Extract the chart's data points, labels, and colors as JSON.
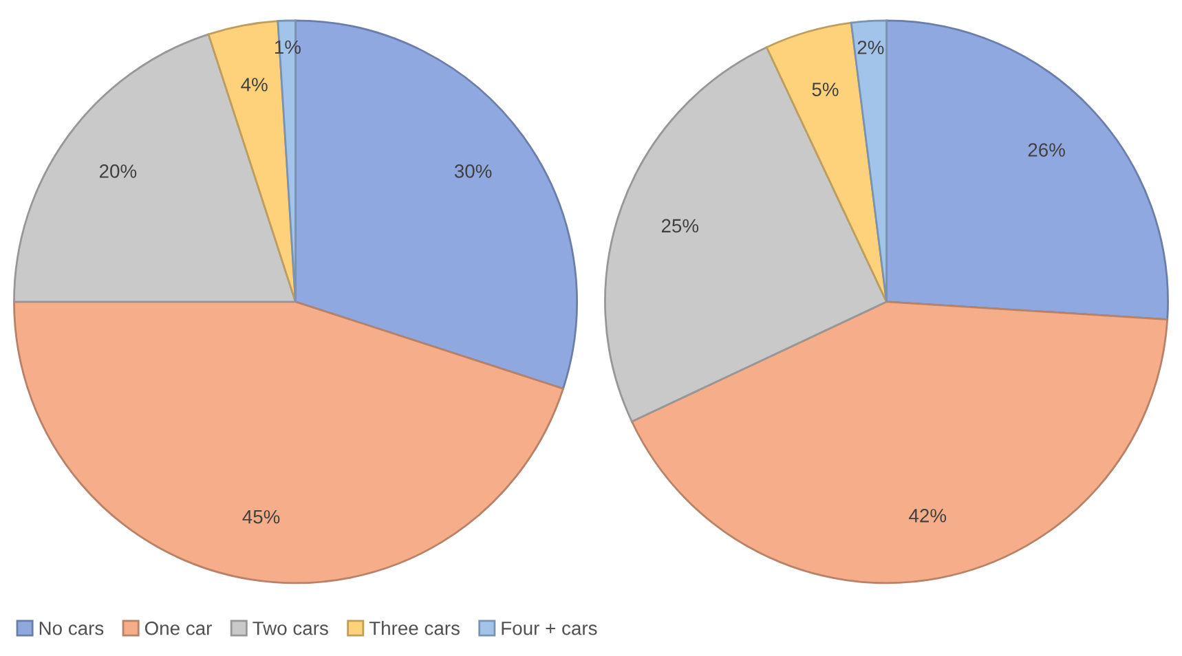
{
  "chart_data": [
    {
      "type": "pie",
      "categories": [
        "No cars",
        "One car",
        "Two cars",
        "Three cars",
        "Four + cars"
      ],
      "values": [
        30,
        45,
        20,
        4,
        1
      ],
      "value_labels": [
        "30%",
        "45%",
        "20%",
        "4%",
        "1%"
      ],
      "colors": [
        "#8fa8e0",
        "#f5ad8a",
        "#c9c9c9",
        "#fdd27a",
        "#a2c4ea"
      ],
      "legend": "bottom left"
    },
    {
      "type": "pie",
      "categories": [
        null,
        null,
        null,
        null,
        null
      ],
      "values": [
        26,
        42,
        25,
        5,
        2
      ],
      "value_labels": [
        "26%",
        "42%",
        "25%",
        "5%",
        "2%"
      ],
      "colors": [
        "#8fa8e0",
        "#f5ad8a",
        "#c9c9c9",
        "#fdd27a",
        "#a2c4ea"
      ]
    }
  ]
}
